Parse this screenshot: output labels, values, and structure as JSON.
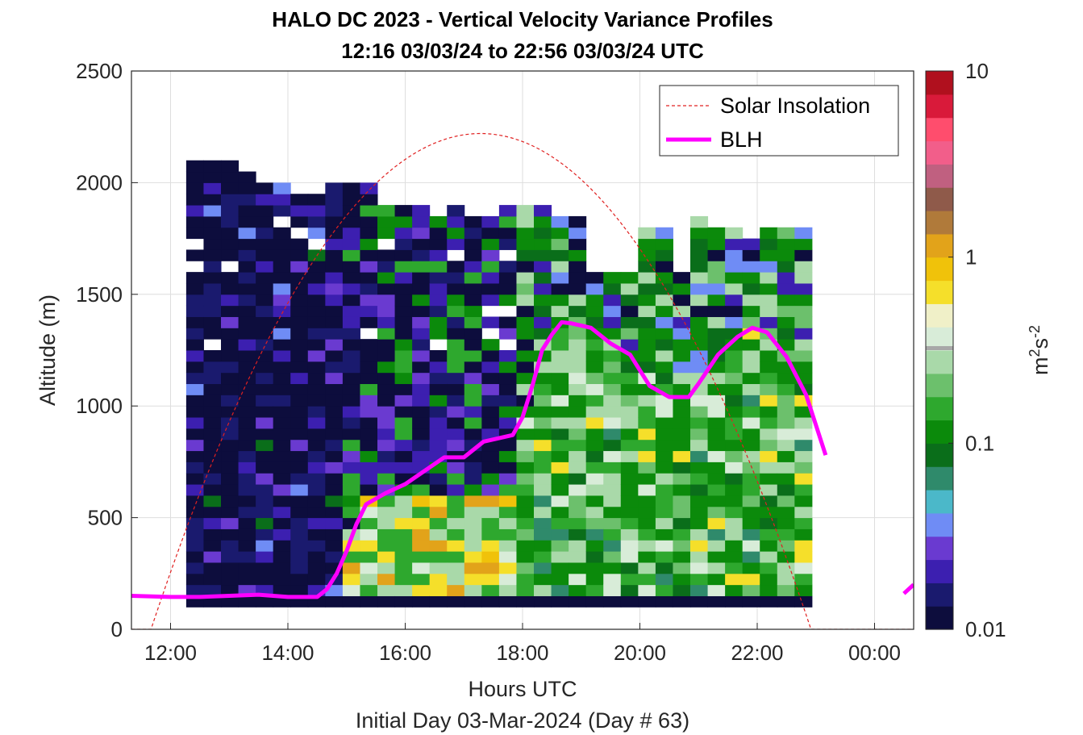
{
  "chart_data": {
    "type": "heatmap",
    "title": "HALO DC 2023 - Vertical Velocity Variance Profiles",
    "subtitle": "12:16 03/03/24 to 22:56 03/03/24  UTC",
    "xlabel": "Hours UTC",
    "xlabel2": "Initial Day 03-Mar-2024 (Day # 63)",
    "ylabel": "Altitude (m)",
    "colorbar_label": "m2s-2",
    "colorbar_scale": "log",
    "colorbar_range": [
      0.01,
      10
    ],
    "colorbar_ticks": [
      {
        "value": 0.01,
        "label": "0.01"
      },
      {
        "value": 0.1,
        "label": "0.1"
      },
      {
        "value": 1,
        "label": "1"
      },
      {
        "value": 10,
        "label": "10"
      }
    ],
    "colormap": [
      "#0d0d3d",
      "#1a1a6e",
      "#3c1fb0",
      "#6a3ad0",
      "#6f8cf5",
      "#4bb8c9",
      "#2f8a6b",
      "#0a6e1a",
      "#0b8a0b",
      "#2ea82e",
      "#6cc06c",
      "#a9d9a9",
      "#d8ecd8",
      "#f0f0c8",
      "#f5df2a",
      "#f0c20a",
      "#e2a31a",
      "#b07a3a",
      "#8f5a4a",
      "#c06080",
      "#f25e8a",
      "#ff4d6d",
      "#d91a3a",
      "#b0101e"
    ],
    "xlim": [
      "11:20",
      "00:40"
    ],
    "x_ticks": [
      "12:00",
      "14:00",
      "16:00",
      "18:00",
      "20:00",
      "22:00",
      "00:00"
    ],
    "ylim": [
      0,
      2500
    ],
    "y_ticks": [
      0,
      500,
      1000,
      1500,
      2000,
      2500
    ],
    "grid": true,
    "legend_position": "top-right",
    "legend": [
      {
        "label": "Solar Insolation",
        "style": "dashed",
        "color": "#e02020"
      },
      {
        "label": "BLH",
        "style": "solid",
        "color": "#ff00ff"
      }
    ],
    "heatmap": {
      "x_start": "12:16",
      "x_end": "22:56",
      "bin_minutes": 20,
      "altitude_base": 100,
      "altitude_bin": 50,
      "tops": [
        2100,
        2150,
        2100,
        2050,
        2000,
        2000,
        1950,
        1950,
        2000,
        2000,
        2000,
        1900,
        1900,
        1900,
        1900,
        1900,
        1850,
        1850,
        1900,
        1900,
        1900,
        1850,
        1850,
        1600,
        1600,
        1600,
        1800,
        1800,
        1600,
        1850,
        1800,
        1800,
        1750,
        1800,
        1800,
        1800
      ]
    },
    "series": [
      {
        "name": "BLH",
        "x": [
          "11:20",
          "12:00",
          "12:30",
          "13:00",
          "13:30",
          "14:00",
          "14:30",
          "14:40",
          "14:50",
          "15:00",
          "15:10",
          "15:20",
          "15:40",
          "16:00",
          "16:20",
          "16:40",
          "17:00",
          "17:20",
          "17:30",
          "17:50",
          "18:00",
          "18:10",
          "18:20",
          "18:30",
          "18:40",
          "18:50",
          "19:10",
          "19:30",
          "19:50",
          "20:10",
          "20:30",
          "20:50",
          "21:00",
          "21:20",
          "21:40",
          "21:55",
          "22:10",
          "22:30",
          "22:50",
          "23:10"
        ],
        "y": [
          150,
          145,
          145,
          150,
          155,
          145,
          145,
          180,
          250,
          350,
          470,
          560,
          610,
          650,
          710,
          770,
          770,
          840,
          850,
          870,
          950,
          1090,
          1250,
          1320,
          1375,
          1370,
          1350,
          1280,
          1230,
          1090,
          1040,
          1040,
          1100,
          1230,
          1310,
          1350,
          1330,
          1220,
          1050,
          780
        ]
      },
      {
        "name": "BLH (next day)",
        "x": [
          "00:30",
          "00:40"
        ],
        "y": [
          160,
          200
        ]
      },
      {
        "name": "Solar Insolation",
        "sunrise": "11:40",
        "sunset": "22:55",
        "peak_time": "17:17",
        "peak_altitude_equiv": 2220
      }
    ]
  }
}
